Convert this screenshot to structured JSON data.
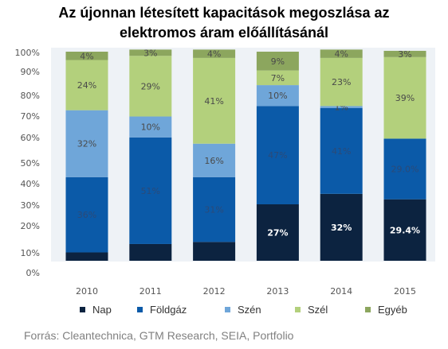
{
  "chart_data": {
    "type": "bar",
    "stacked": true,
    "title_line1": "Az újonnan létesített kapacitások megoszlása az",
    "title_line2": "elektromos áram előállításánál",
    "categories": [
      "2010",
      "2011",
      "2012",
      "2013",
      "2014",
      "2015"
    ],
    "yticks": [
      "0%",
      "10%",
      "20%",
      "30%",
      "40%",
      "50%",
      "60%",
      "70%",
      "80%",
      "90%",
      "100%"
    ],
    "ylim": [
      0,
      100
    ],
    "grid": false,
    "legend_position": "bottom",
    "series": [
      {
        "name": "Nap",
        "color": "#0c2340",
        "values": [
          4,
          8,
          9,
          27,
          32,
          29.4
        ],
        "labels": [
          "",
          "",
          "",
          "27%",
          "32%",
          "29.4%"
        ]
      },
      {
        "name": "Földgáz",
        "color": "#0b5aa8",
        "values": [
          36,
          51,
          31,
          47,
          41,
          29.0
        ],
        "labels": [
          "36%",
          "51%",
          "31%",
          "47%",
          "41%",
          "29.0%"
        ]
      },
      {
        "name": "Szén",
        "color": "#6fa6d9",
        "values": [
          32,
          10,
          16,
          10,
          1,
          0
        ],
        "labels": [
          "32%",
          "10%",
          "16%",
          "10%",
          "1%",
          ""
        ]
      },
      {
        "name": "Szél",
        "color": "#b3d07c",
        "values": [
          24,
          29,
          41,
          7,
          23,
          39
        ],
        "labels": [
          "24%",
          "29%",
          "41%",
          "7%",
          "23%",
          "39%"
        ]
      },
      {
        "name": "Egyéb",
        "color": "#8ca65e",
        "values": [
          4,
          3,
          4,
          9,
          4,
          3
        ],
        "labels": [
          "4%",
          "3%",
          "4%",
          "9%",
          "4%",
          "3%"
        ]
      }
    ]
  },
  "source": "Forrás: Cleantechnica, GTM Research, SEIA, Portfolio"
}
